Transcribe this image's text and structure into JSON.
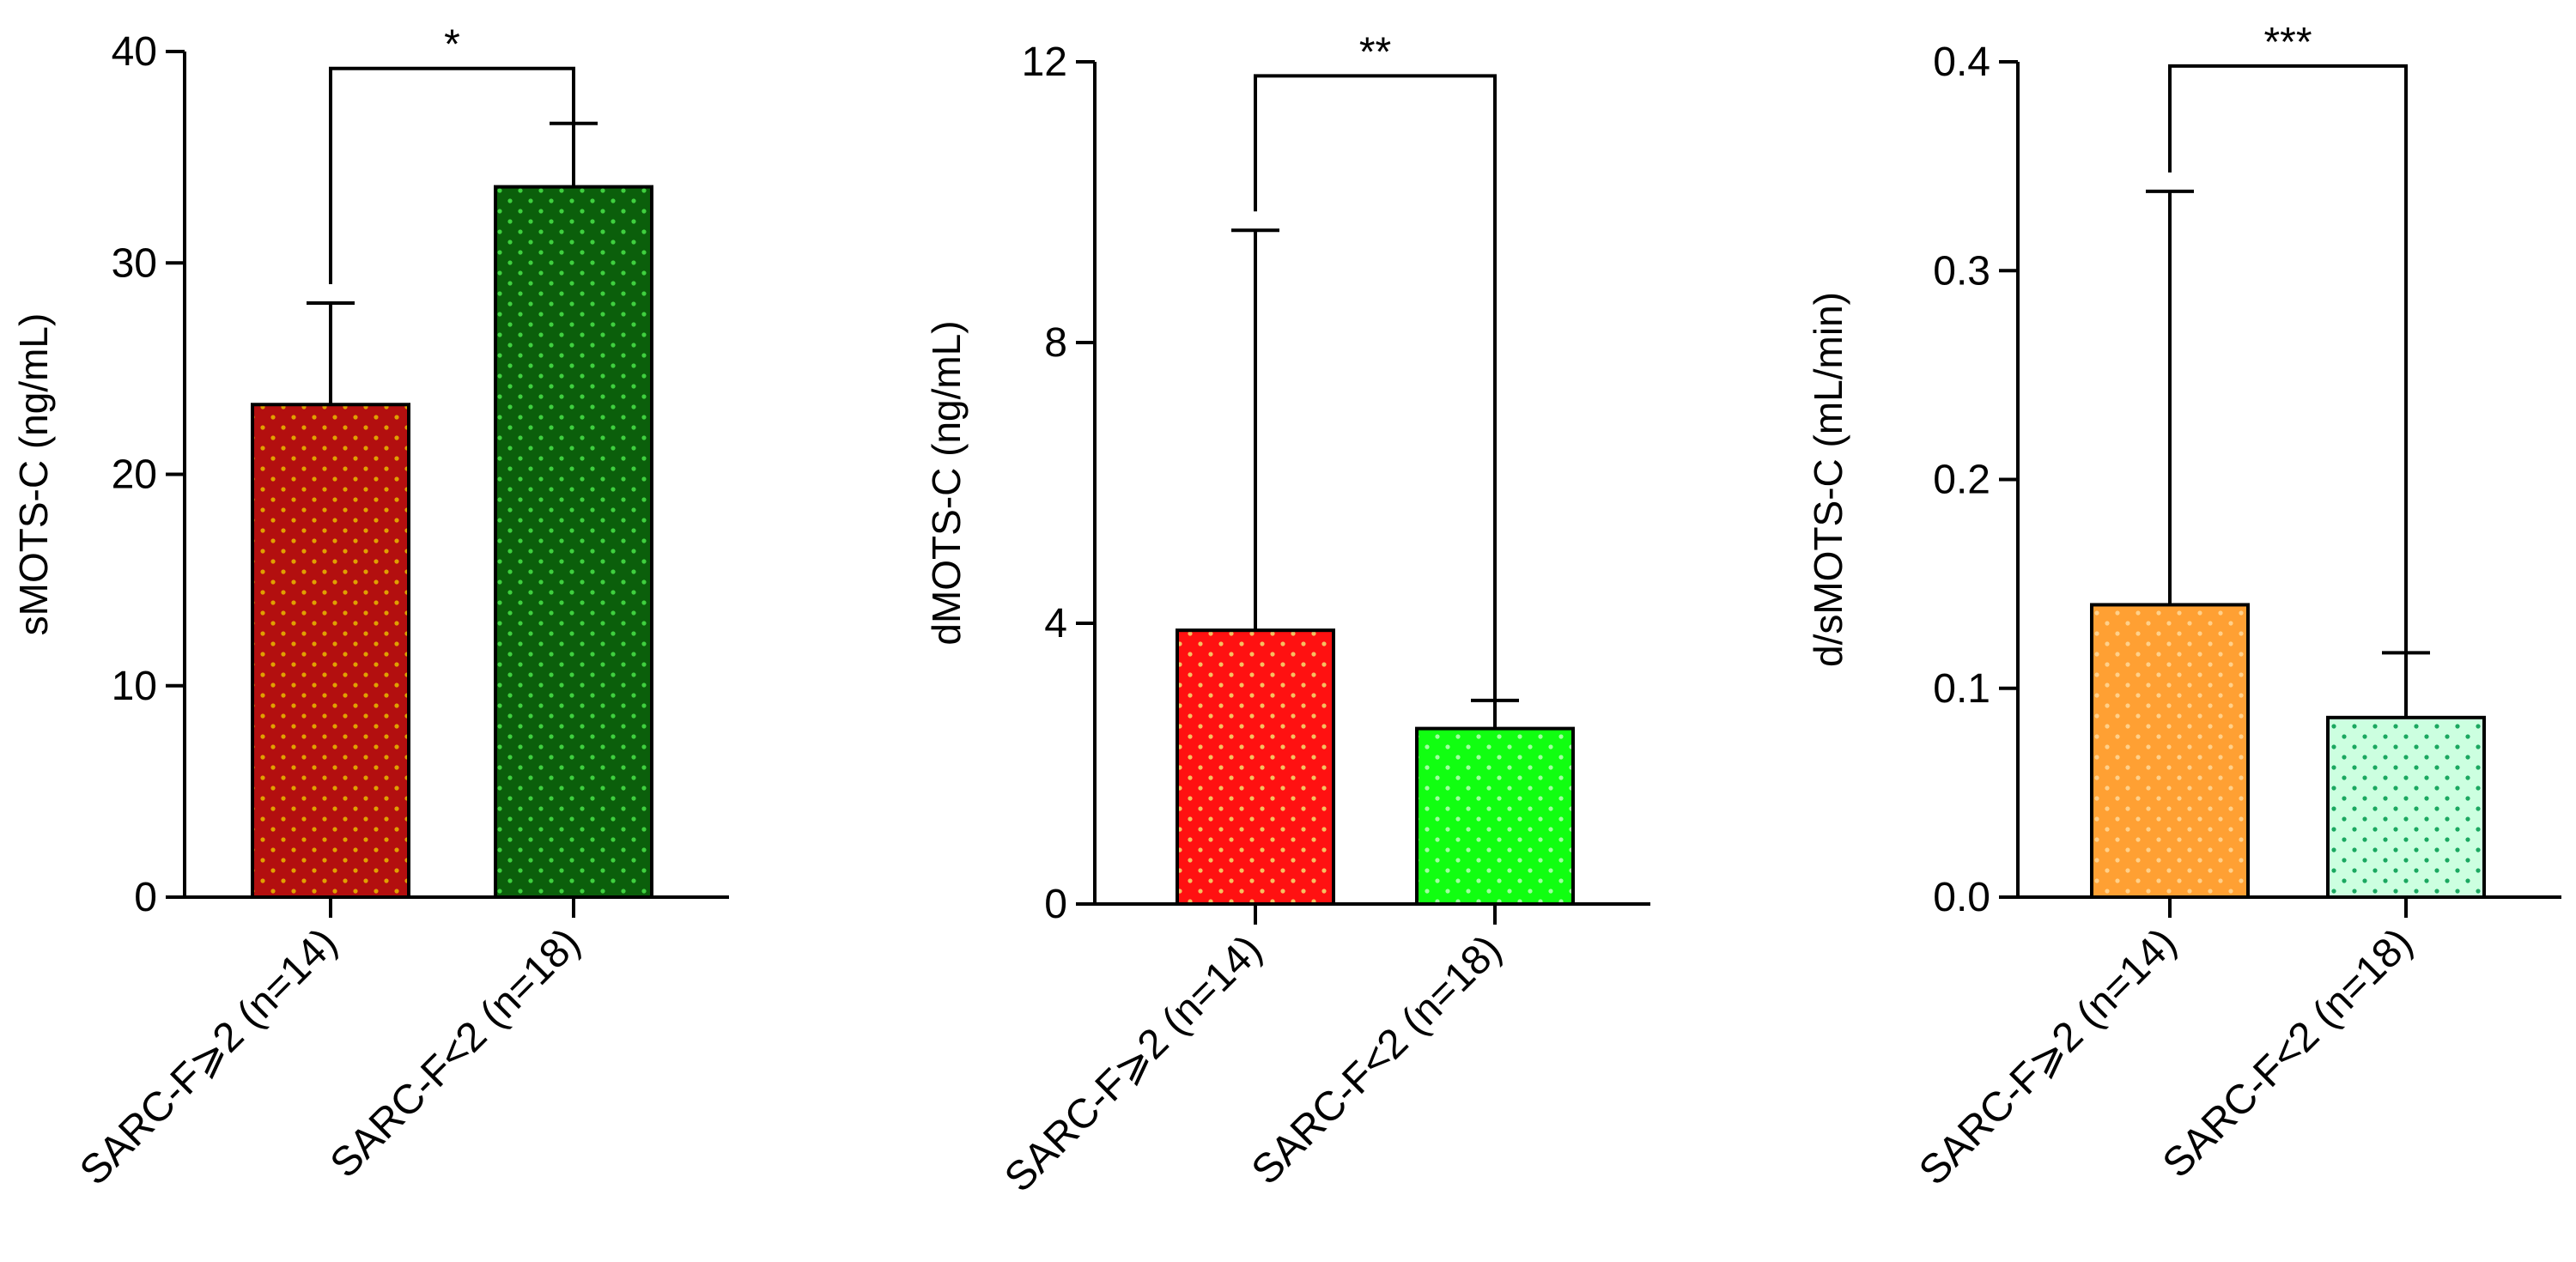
{
  "chart_data": [
    {
      "type": "bar",
      "ylabel": "sMOTS-C (ng/mL)",
      "ylim": [
        0,
        40
      ],
      "yticks": [
        0,
        10,
        20,
        30,
        40
      ],
      "tick_labels": [
        "0",
        "10",
        "20",
        "30",
        "40"
      ],
      "categories": [
        "SARC-F⩾2 (n=14)",
        "SARC-F<2 (n=18)"
      ],
      "values": [
        23.3,
        33.6
      ],
      "error_upper": [
        28.1,
        36.6
      ],
      "colors": [
        "#b30f0f",
        "#0b5f0b"
      ],
      "dot_colors": [
        "#e0a000",
        "#3fd03f"
      ],
      "significance": {
        "label": "*",
        "level": 39.2
      }
    },
    {
      "type": "bar",
      "ylabel": "dMOTS-C (ng/mL)",
      "ylim": [
        0,
        12
      ],
      "yticks": [
        0,
        4,
        8,
        12
      ],
      "tick_labels": [
        "0",
        "4",
        "8",
        "12"
      ],
      "categories": [
        "SARC-F⩾2 (n=14)",
        "SARC-F<2 (n=18)"
      ],
      "values": [
        3.9,
        2.5
      ],
      "error_upper": [
        9.6,
        2.9
      ],
      "colors": [
        "#ff1111",
        "#11ff11"
      ],
      "dot_colors": [
        "#f5c060",
        "#a0ffa0"
      ],
      "significance": {
        "label": "**",
        "level": 11.8
      }
    },
    {
      "type": "bar",
      "ylabel": "d/sMOTS-C (mL/min)",
      "ylim": [
        0,
        0.4
      ],
      "yticks": [
        0,
        0.1,
        0.2,
        0.3,
        0.4
      ],
      "tick_labels": [
        "0.0",
        "0.1",
        "0.2",
        "0.3",
        "0.4"
      ],
      "categories": [
        "SARC-F⩾2 (n=14)",
        "SARC-F<2 (n=18)"
      ],
      "values": [
        0.14,
        0.086
      ],
      "error_upper": [
        0.338,
        0.117
      ],
      "colors": [
        "#ffa033",
        "#ccffe0"
      ],
      "dot_colors": [
        "#ffd08a",
        "#1aa860"
      ],
      "significance": {
        "label": "***",
        "level": 0.398
      }
    }
  ]
}
